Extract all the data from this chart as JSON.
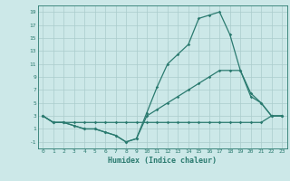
{
  "xlabel": "Humidex (Indice chaleur)",
  "bg_color": "#cce8e8",
  "line_color": "#2a7a6f",
  "grid_color": "#aacccc",
  "xlim": [
    -0.5,
    23.5
  ],
  "ylim": [
    -2,
    20
  ],
  "xticks": [
    0,
    1,
    2,
    3,
    4,
    5,
    6,
    7,
    8,
    9,
    10,
    11,
    12,
    13,
    14,
    15,
    16,
    17,
    18,
    19,
    20,
    21,
    22,
    23
  ],
  "yticks": [
    -1,
    1,
    3,
    5,
    7,
    9,
    11,
    13,
    15,
    17,
    19
  ],
  "line_bottom_x": [
    0,
    1,
    2,
    3,
    4,
    5,
    6,
    7,
    8,
    9,
    10,
    11,
    12,
    13,
    14,
    15,
    16,
    17,
    18,
    19,
    20,
    21,
    22,
    23
  ],
  "line_bottom_y": [
    3,
    2,
    2,
    2,
    2,
    2,
    2,
    2,
    2,
    2,
    2,
    2,
    2,
    2,
    2,
    2,
    2,
    2,
    2,
    2,
    2,
    2,
    3,
    3
  ],
  "line_top_x": [
    0,
    1,
    2,
    3,
    4,
    5,
    6,
    7,
    8,
    9,
    10,
    11,
    12,
    13,
    14,
    15,
    16,
    17,
    18,
    19,
    20,
    21,
    22,
    23
  ],
  "line_top_y": [
    3,
    2,
    2,
    1.5,
    1,
    1,
    0.5,
    0,
    -1,
    -0.5,
    3.5,
    7.5,
    11,
    12.5,
    14,
    18,
    18.5,
    19,
    15.5,
    10,
    6,
    5,
    3,
    3
  ],
  "line_mid_x": [
    0,
    1,
    2,
    3,
    4,
    5,
    6,
    7,
    8,
    9,
    10,
    11,
    12,
    13,
    14,
    15,
    16,
    17,
    18,
    19,
    20,
    21,
    22,
    23
  ],
  "line_mid_y": [
    3,
    2,
    2,
    1.5,
    1,
    1,
    0.5,
    0,
    -1,
    -0.5,
    3,
    4,
    5,
    6,
    7,
    8,
    9,
    10,
    10,
    10,
    6.5,
    5,
    3,
    3
  ]
}
